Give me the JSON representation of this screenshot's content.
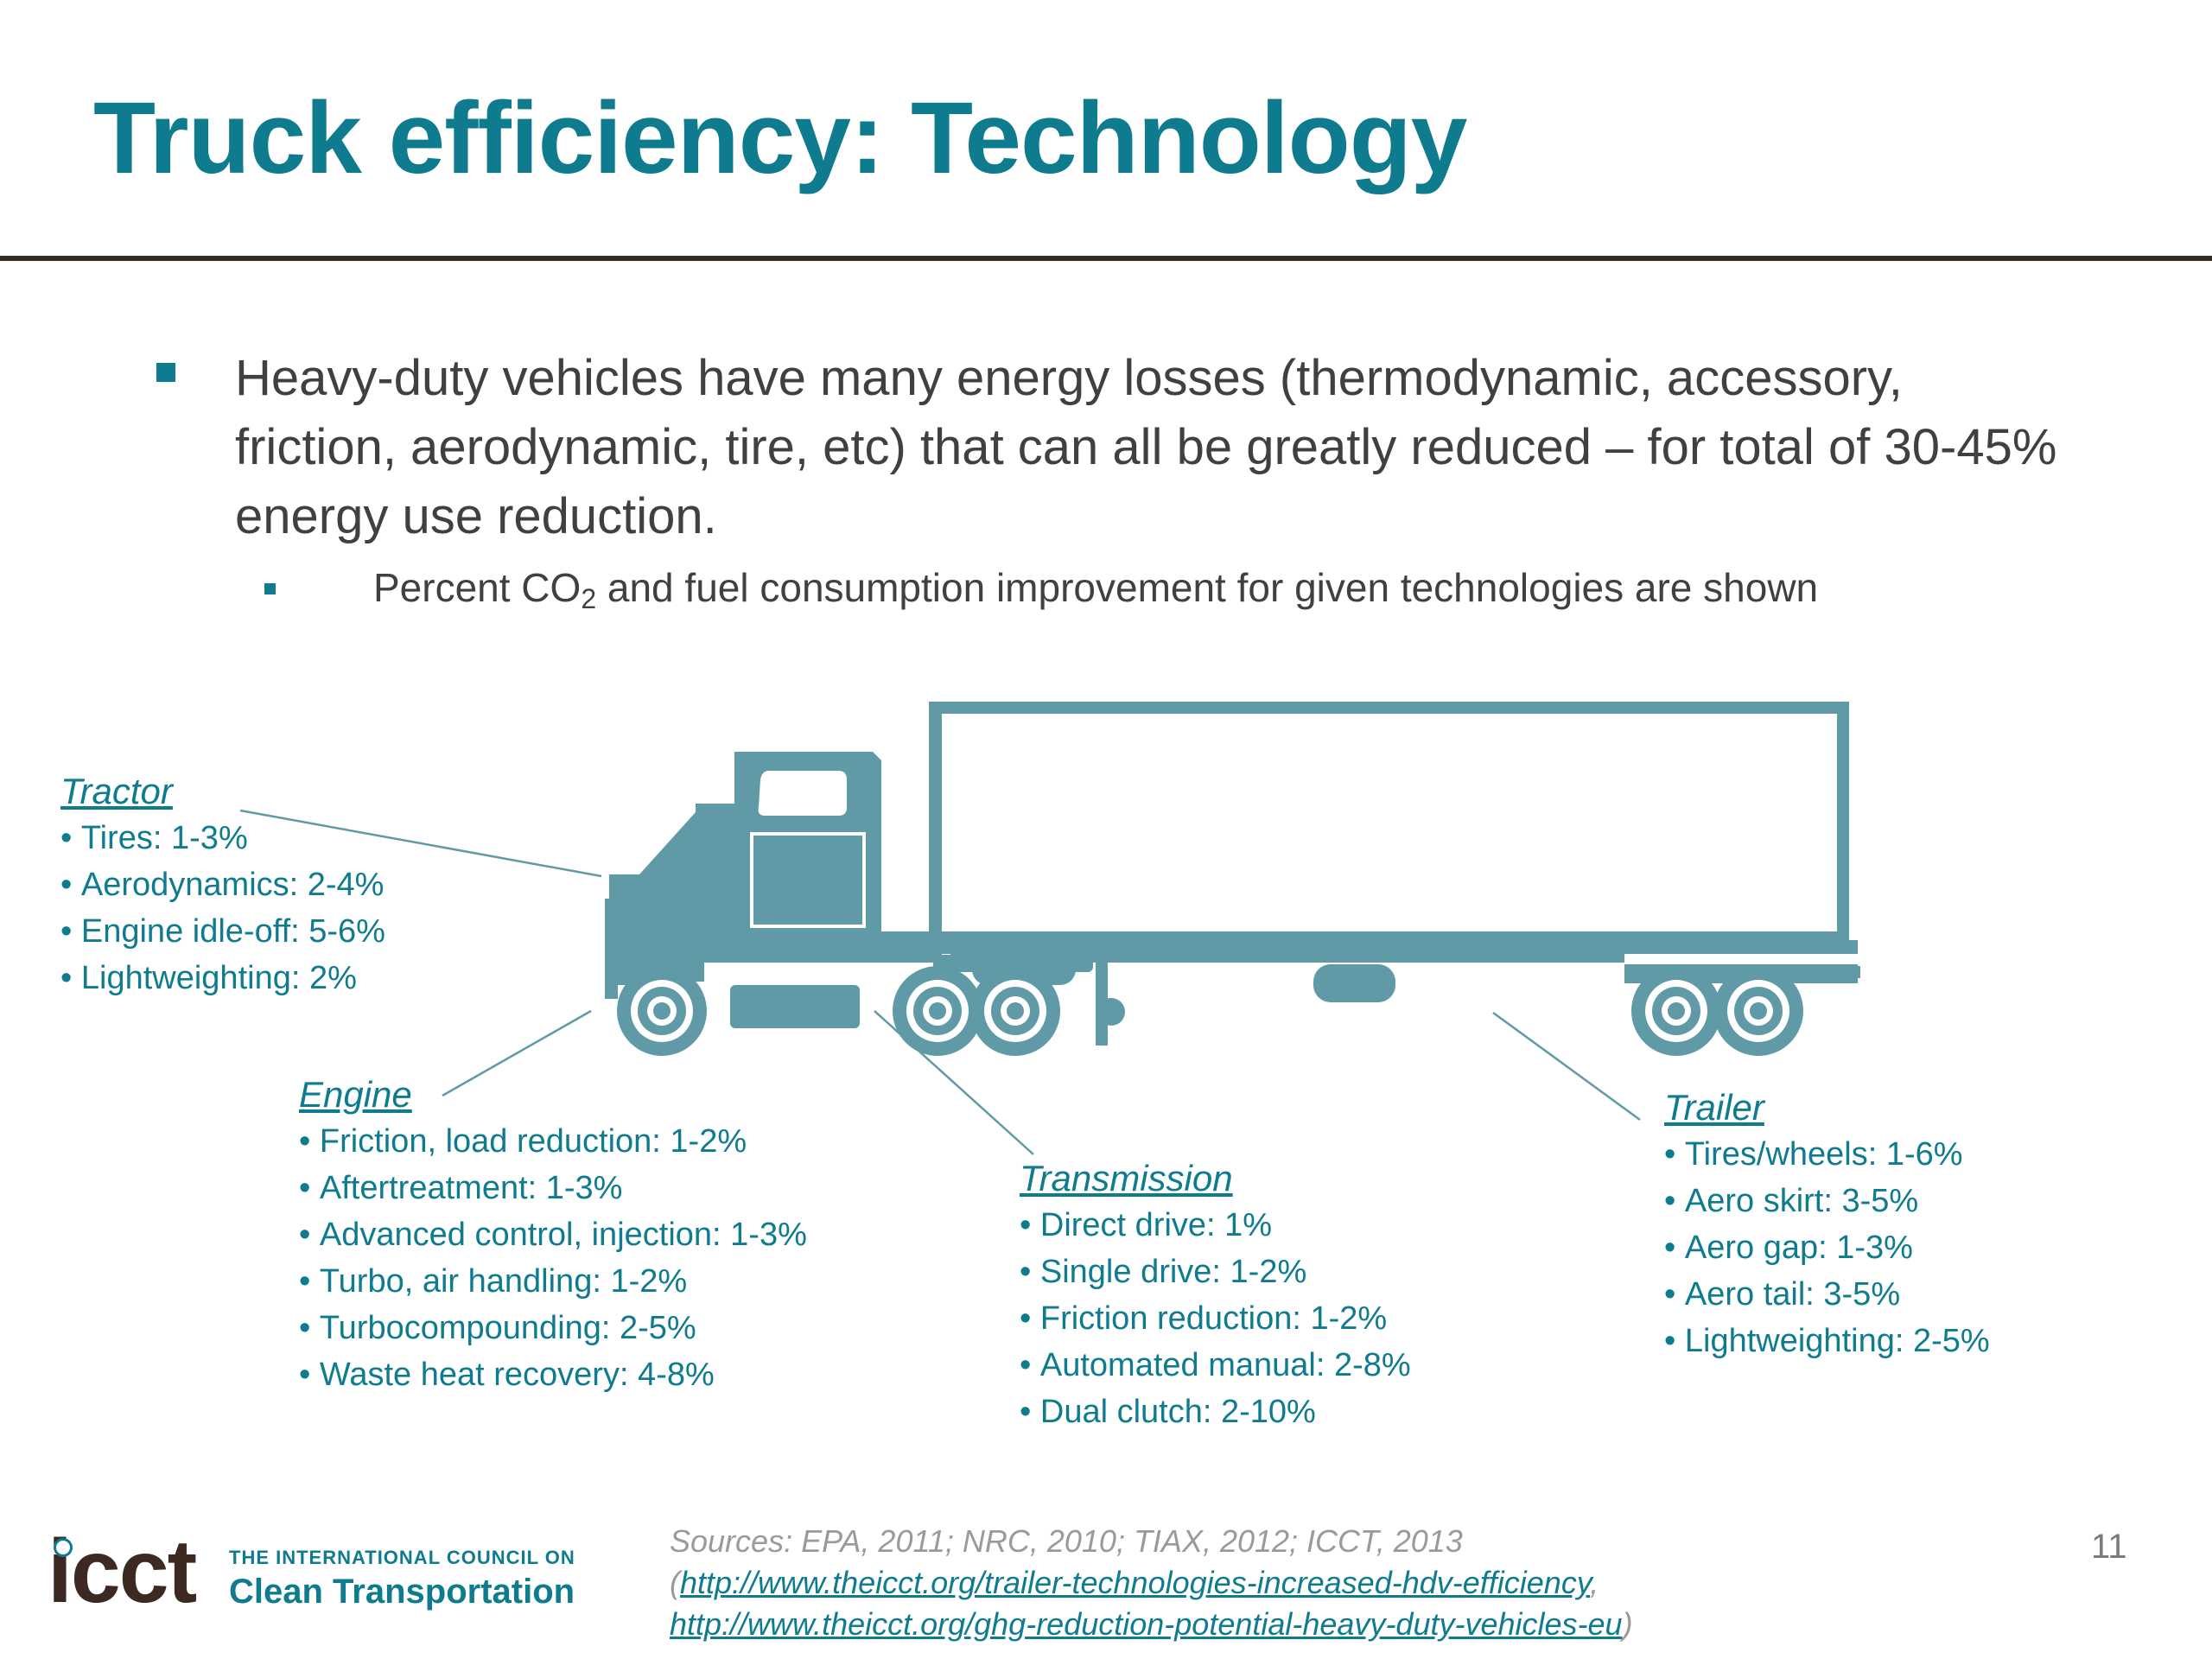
{
  "slide": {
    "title": "Truck efficiency: Technology",
    "bullet_main": "Heavy-duty vehicles have many energy losses (thermodynamic, accessory, friction, aerodynamic, tire, etc) that can all be greatly reduced – for total of 30-45% energy use reduction.",
    "bullet_sub_pre": "Percent CO",
    "bullet_sub_subscript": "2",
    "bullet_sub_post": " and fuel consumption improvement for given technologies are shown",
    "page_number": "11"
  },
  "groups": {
    "tractor": {
      "heading": "Tractor",
      "items": [
        "Tires: 1-3%",
        "Aerodynamics: 2-4%",
        "Engine idle-off: 5-6%",
        "Lightweighting: 2%"
      ]
    },
    "engine": {
      "heading": "Engine",
      "items": [
        "Friction, load reduction: 1-2%",
        "Aftertreatment: 1-3%",
        "Advanced control, injection: 1-3%",
        "Turbo, air handling: 1-2%",
        "Turbocompounding: 2-5%",
        "Waste heat recovery: 4-8%"
      ]
    },
    "transmission": {
      "heading": "Transmission",
      "items": [
        "Direct drive: 1%",
        "Single drive: 1-2%",
        "Friction reduction: 1-2%",
        "Automated manual: 2-8%",
        "Dual clutch: 2-10%"
      ]
    },
    "trailer": {
      "heading": "Trailer",
      "items": [
        "Tires/wheels: 1-6%",
        "Aero skirt: 3-5%",
        "Aero gap: 1-3%",
        "Aero tail: 3-5%",
        "Lightweighting: 2-5%"
      ]
    }
  },
  "sources": {
    "text": "Sources: EPA, 2011; NRC, 2010; TIAX, 2012; ICCT, 2013",
    "open_paren": "(",
    "link1": "http://www.theicct.org/trailer-technologies-increased-hdv-efficiency",
    "separator": ",",
    "link2": "http://www.theicct.org/ghg-reduction-potential-heavy-duty-vehicles-eu",
    "close_paren": ")"
  },
  "logo": {
    "wordmark": "icct",
    "line1": "THE INTERNATIONAL COUNCIL ON",
    "line2": "Clean Transportation"
  },
  "colors": {
    "accent": "#0f7b8f",
    "truck": "#5f9aa6",
    "body_text": "#404040",
    "rule": "#3a2a24"
  }
}
